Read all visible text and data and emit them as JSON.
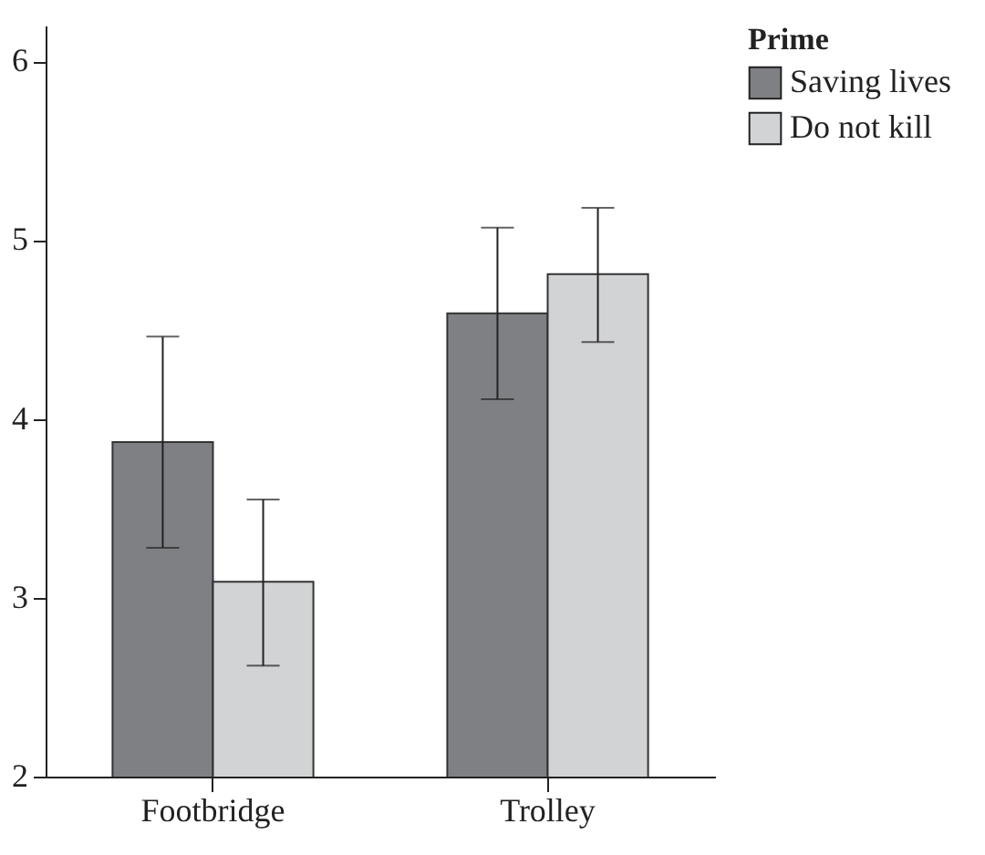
{
  "chart_data": {
    "type": "bar",
    "legend_title": "Prime",
    "categories": [
      "Footbridge",
      "Trolley"
    ],
    "series": [
      {
        "name": "Saving lives",
        "color": "#7f8084",
        "values": [
          3.87,
          4.59
        ],
        "errors": [
          [
            3.28,
            4.46
          ],
          [
            4.11,
            5.07
          ]
        ]
      },
      {
        "name": "Do not kill",
        "color": "#d2d3d5",
        "values": [
          3.09,
          4.81
        ],
        "errors": [
          [
            2.62,
            3.55
          ],
          [
            4.43,
            5.18
          ]
        ]
      }
    ],
    "ylim": [
      2,
      6.2
    ],
    "yticks": [
      2,
      3,
      4,
      5,
      6
    ],
    "legend": "top right"
  }
}
